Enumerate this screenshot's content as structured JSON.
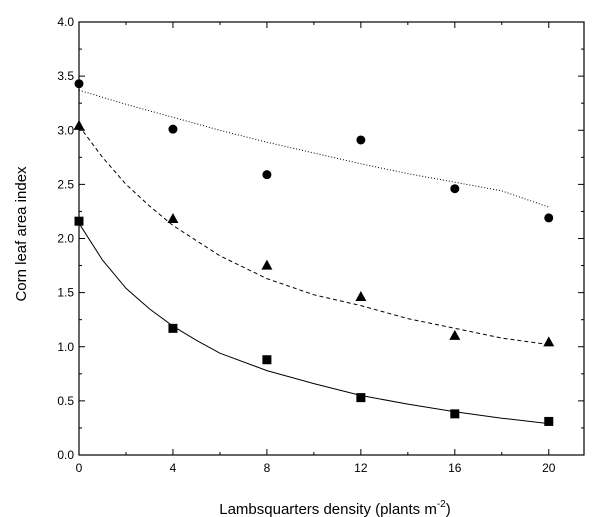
{
  "chart_data": {
    "type": "scatter",
    "xlabel": "Lambsquarters density (plants m",
    "xlabel_superscript": "-2",
    "xlabel_suffix": ")",
    "ylabel": "Corn leaf area index",
    "xlim": [
      0,
      21.5
    ],
    "ylim": [
      0,
      4.0
    ],
    "x_ticks": [
      "0",
      "4",
      "8",
      "12",
      "16",
      "20"
    ],
    "y_ticks": [
      "0.0",
      "0.5",
      "1.0",
      "1.5",
      "2.0",
      "2.5",
      "3.0",
      "3.5",
      "4.0"
    ],
    "grid": false,
    "series": [
      {
        "marker": "circle",
        "fit_line": "dotted",
        "points": [
          [
            0,
            3.43
          ],
          [
            4,
            3.01
          ],
          [
            8,
            2.59
          ],
          [
            12,
            2.91
          ],
          [
            16,
            2.46
          ],
          [
            20,
            2.19
          ]
        ],
        "fit": [
          [
            0,
            3.37
          ],
          [
            2,
            3.24
          ],
          [
            4,
            3.12
          ],
          [
            6,
            3.0
          ],
          [
            8,
            2.89
          ],
          [
            10,
            2.79
          ],
          [
            12,
            2.69
          ],
          [
            14,
            2.6
          ],
          [
            16,
            2.52
          ],
          [
            18,
            2.44
          ],
          [
            20,
            2.29
          ]
        ]
      },
      {
        "marker": "triangle",
        "fit_line": "dashed",
        "points": [
          [
            0,
            3.04
          ],
          [
            4,
            2.18
          ],
          [
            8,
            1.75
          ],
          [
            12,
            1.46
          ],
          [
            16,
            1.1
          ],
          [
            20,
            1.04
          ]
        ],
        "fit": [
          [
            0,
            3.04
          ],
          [
            1,
            2.75
          ],
          [
            2,
            2.5
          ],
          [
            3,
            2.3
          ],
          [
            4,
            2.12
          ],
          [
            6,
            1.84
          ],
          [
            8,
            1.63
          ],
          [
            10,
            1.48
          ],
          [
            12,
            1.38
          ],
          [
            14,
            1.26
          ],
          [
            16,
            1.17
          ],
          [
            18,
            1.08
          ],
          [
            20,
            1.02
          ]
        ]
      },
      {
        "marker": "square",
        "fit_line": "solid",
        "points": [
          [
            0,
            2.16
          ],
          [
            4,
            1.17
          ],
          [
            8,
            0.88
          ],
          [
            12,
            0.53
          ],
          [
            16,
            0.38
          ],
          [
            20,
            0.31
          ]
        ],
        "fit": [
          [
            0,
            2.14
          ],
          [
            1,
            1.8
          ],
          [
            2,
            1.54
          ],
          [
            3,
            1.35
          ],
          [
            4,
            1.19
          ],
          [
            5,
            1.06
          ],
          [
            6,
            0.94
          ],
          [
            8,
            0.78
          ],
          [
            10,
            0.66
          ],
          [
            12,
            0.55
          ],
          [
            14,
            0.47
          ],
          [
            16,
            0.4
          ],
          [
            18,
            0.34
          ],
          [
            20,
            0.29
          ]
        ]
      }
    ]
  }
}
